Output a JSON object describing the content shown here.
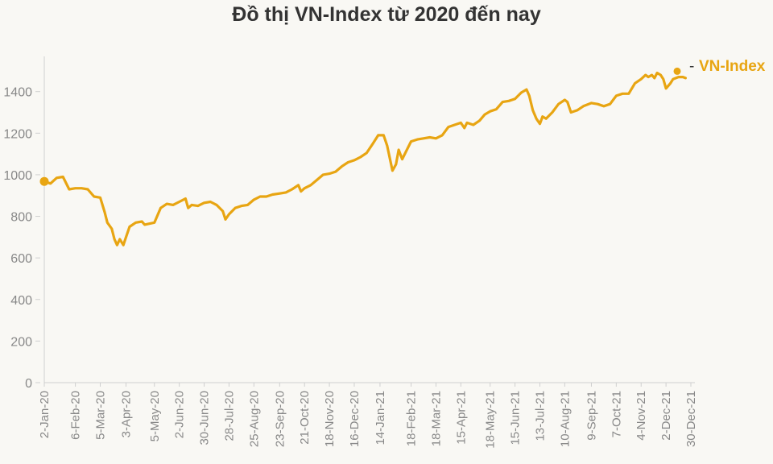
{
  "title": "Đồ thị VN-Index từ 2020 đến nay",
  "colors": {
    "series": "#e8a512",
    "axis": "#cfcfcf",
    "tick_text": "#888888"
  },
  "chart_data": {
    "type": "line",
    "title": "Đồ thị VN-Index từ 2020 đến nay",
    "xlabel": "",
    "ylabel": "",
    "ylim": [
      0,
      1550
    ],
    "yticks": [
      0,
      200,
      400,
      600,
      800,
      1000,
      1200,
      1400
    ],
    "xticks": [
      "2-Jan-20",
      "6-Feb-20",
      "5-Mar-20",
      "3-Apr-20",
      "5-May-20",
      "2-Jun-20",
      "30-Jun-20",
      "28-Jul-20",
      "25-Aug-20",
      "23-Sep-20",
      "21-Oct-20",
      "18-Nov-20",
      "16-Dec-20",
      "14-Jan-21",
      "18-Feb-21",
      "18-Mar-21",
      "15-Apr-21",
      "18-May-21",
      "15-Jun-21",
      "13-Jul-21",
      "10-Aug-21",
      "9-Sep-21",
      "7-Oct-21",
      "4-Nov-21",
      "2-Dec-21",
      "30-Dec-21"
    ],
    "legend": {
      "placement": "top-right"
    },
    "grid": false,
    "series": [
      {
        "name": "VN-Index",
        "end_marker_value": 1498,
        "points": [
          [
            "2-Jan-20",
            968
          ],
          [
            "9-Jan-20",
            958
          ],
          [
            "16-Jan-20",
            985
          ],
          [
            "23-Jan-20",
            990
          ],
          [
            "30-Jan-20",
            930
          ],
          [
            "6-Feb-20",
            935
          ],
          [
            "13-Feb-20",
            935
          ],
          [
            "20-Feb-20",
            930
          ],
          [
            "27-Feb-20",
            895
          ],
          [
            "5-Mar-20",
            890
          ],
          [
            "10-Mar-20",
            820
          ],
          [
            "13-Mar-20",
            770
          ],
          [
            "18-Mar-20",
            740
          ],
          [
            "21-Mar-20",
            690
          ],
          [
            "24-Mar-20",
            662
          ],
          [
            "27-Mar-20",
            690
          ],
          [
            "31-Mar-20",
            662
          ],
          [
            "3-Apr-20",
            700
          ],
          [
            "7-Apr-20",
            750
          ],
          [
            "14-Apr-20",
            770
          ],
          [
            "21-Apr-20",
            775
          ],
          [
            "24-Apr-20",
            760
          ],
          [
            "5-May-20",
            770
          ],
          [
            "12-May-20",
            840
          ],
          [
            "19-May-20",
            860
          ],
          [
            "26-May-20",
            855
          ],
          [
            "2-Jun-20",
            870
          ],
          [
            "9-Jun-20",
            885
          ],
          [
            "12-Jun-20",
            840
          ],
          [
            "16-Jun-20",
            855
          ],
          [
            "23-Jun-20",
            850
          ],
          [
            "30-Jun-20",
            865
          ],
          [
            "7-Jul-20",
            870
          ],
          [
            "14-Jul-20",
            855
          ],
          [
            "21-Jul-20",
            825
          ],
          [
            "24-Jul-20",
            785
          ],
          [
            "28-Jul-20",
            810
          ],
          [
            "4-Aug-20",
            840
          ],
          [
            "11-Aug-20",
            850
          ],
          [
            "18-Aug-20",
            855
          ],
          [
            "25-Aug-20",
            880
          ],
          [
            "1-Sep-20",
            895
          ],
          [
            "8-Sep-20",
            895
          ],
          [
            "15-Sep-20",
            905
          ],
          [
            "23-Sep-20",
            910
          ],
          [
            "30-Sep-20",
            915
          ],
          [
            "7-Oct-20",
            930
          ],
          [
            "14-Oct-20",
            950
          ],
          [
            "17-Oct-20",
            920
          ],
          [
            "21-Oct-20",
            935
          ],
          [
            "28-Oct-20",
            950
          ],
          [
            "4-Nov-20",
            975
          ],
          [
            "11-Nov-20",
            1000
          ],
          [
            "18-Nov-20",
            1005
          ],
          [
            "25-Nov-20",
            1015
          ],
          [
            "2-Dec-20",
            1040
          ],
          [
            "9-Dec-20",
            1060
          ],
          [
            "16-Dec-20",
            1070
          ],
          [
            "23-Dec-20",
            1085
          ],
          [
            "30-Dec-20",
            1105
          ],
          [
            "6-Jan-21",
            1150
          ],
          [
            "12-Jan-21",
            1190
          ],
          [
            "18-Jan-21",
            1190
          ],
          [
            "22-Jan-21",
            1140
          ],
          [
            "28-Jan-21",
            1020
          ],
          [
            "1-Feb-21",
            1050
          ],
          [
            "4-Feb-21",
            1120
          ],
          [
            "8-Feb-21",
            1075
          ],
          [
            "18-Feb-21",
            1160
          ],
          [
            "25-Feb-21",
            1170
          ],
          [
            "4-Mar-21",
            1175
          ],
          [
            "11-Mar-21",
            1180
          ],
          [
            "18-Mar-21",
            1175
          ],
          [
            "25-Mar-21",
            1190
          ],
          [
            "1-Apr-21",
            1230
          ],
          [
            "8-Apr-21",
            1240
          ],
          [
            "15-Apr-21",
            1250
          ],
          [
            "19-Apr-21",
            1225
          ],
          [
            "22-Apr-21",
            1250
          ],
          [
            "29-Apr-21",
            1240
          ],
          [
            "6-May-21",
            1260
          ],
          [
            "12-May-21",
            1290
          ],
          [
            "18-May-21",
            1305
          ],
          [
            "25-May-21",
            1315
          ],
          [
            "1-Jun-21",
            1350
          ],
          [
            "8-Jun-21",
            1355
          ],
          [
            "15-Jun-21",
            1365
          ],
          [
            "22-Jun-21",
            1395
          ],
          [
            "28-Jun-21",
            1410
          ],
          [
            "1-Jul-21",
            1380
          ],
          [
            "5-Jul-21",
            1310
          ],
          [
            "9-Jul-21",
            1270
          ],
          [
            "13-Jul-21",
            1245
          ],
          [
            "16-Jul-21",
            1280
          ],
          [
            "20-Jul-21",
            1270
          ],
          [
            "27-Jul-21",
            1300
          ],
          [
            "3-Aug-21",
            1340
          ],
          [
            "10-Aug-21",
            1360
          ],
          [
            "13-Aug-21",
            1350
          ],
          [
            "17-Aug-21",
            1300
          ],
          [
            "24-Aug-21",
            1310
          ],
          [
            "31-Aug-21",
            1330
          ],
          [
            "9-Sep-21",
            1345
          ],
          [
            "16-Sep-21",
            1340
          ],
          [
            "23-Sep-21",
            1330
          ],
          [
            "30-Sep-21",
            1340
          ],
          [
            "7-Oct-21",
            1380
          ],
          [
            "14-Oct-21",
            1390
          ],
          [
            "21-Oct-21",
            1390
          ],
          [
            "28-Oct-21",
            1440
          ],
          [
            "4-Nov-21",
            1460
          ],
          [
            "9-Nov-21",
            1480
          ],
          [
            "12-Nov-21",
            1470
          ],
          [
            "16-Nov-21",
            1480
          ],
          [
            "19-Nov-21",
            1465
          ],
          [
            "22-Nov-21",
            1490
          ],
          [
            "26-Nov-21",
            1480
          ],
          [
            "29-Nov-21",
            1460
          ],
          [
            "2-Dec-21",
            1415
          ],
          [
            "7-Dec-21",
            1440
          ],
          [
            "10-Dec-21",
            1460
          ],
          [
            "16-Dec-21",
            1470
          ],
          [
            "21-Dec-21",
            1470
          ],
          [
            "24-Dec-21",
            1465
          ]
        ]
      }
    ]
  }
}
